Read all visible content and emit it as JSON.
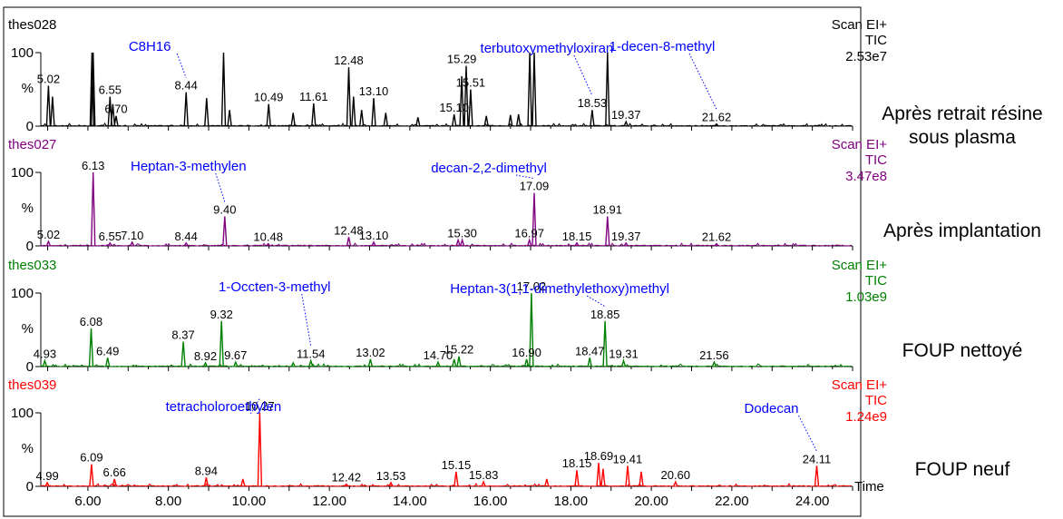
{
  "chart_data": {
    "type": "line",
    "xlim": [
      4.83,
      25.0
    ],
    "x_ticks": [
      "6.00",
      "8.00",
      "10.00",
      "12.00",
      "14.00",
      "16.00",
      "18.00",
      "20.00",
      "22.00",
      "24.00"
    ],
    "x_tick_values": [
      6,
      8,
      10,
      12,
      14,
      16,
      18,
      20,
      22,
      24
    ],
    "x_axis_label": "Time",
    "y_tick_top": "100",
    "y_tick_zero": "0",
    "y_unit": "%",
    "panels": [
      {
        "name": "thes028",
        "color": "#000000",
        "scan": "Scan EI+",
        "tic": "TIC",
        "intensity": "2.53e7",
        "side_label": [
          "Après retrait résine",
          "sous plasma"
        ],
        "peaks": [
          [
            5.02,
            55
          ],
          [
            5.12,
            40
          ],
          [
            6.1,
            100
          ],
          [
            6.13,
            100
          ],
          [
            6.55,
            40
          ],
          [
            6.62,
            30
          ],
          [
            6.7,
            14
          ],
          [
            8.44,
            46
          ],
          [
            8.95,
            38
          ],
          [
            9.37,
            100
          ],
          [
            9.52,
            22
          ],
          [
            10.49,
            30
          ],
          [
            11.1,
            18
          ],
          [
            11.61,
            31
          ],
          [
            12.48,
            80
          ],
          [
            12.6,
            40
          ],
          [
            12.8,
            22
          ],
          [
            13.1,
            38
          ],
          [
            13.4,
            18
          ],
          [
            14.2,
            12
          ],
          [
            15.1,
            16
          ],
          [
            15.29,
            68
          ],
          [
            15.4,
            82
          ],
          [
            15.51,
            50
          ],
          [
            15.9,
            14
          ],
          [
            16.5,
            15
          ],
          [
            16.7,
            16
          ],
          [
            16.98,
            100
          ],
          [
            17.09,
            100
          ],
          [
            18.53,
            22
          ],
          [
            18.91,
            100
          ],
          [
            19.37,
            6
          ],
          [
            21.62,
            3
          ]
        ],
        "labels": [
          {
            "t": "5.02",
            "x": 5.02,
            "y": 55
          },
          {
            "t": "6.55",
            "x": 6.55,
            "y": 40
          },
          {
            "t": "6.70",
            "x": 6.7,
            "y": 14
          },
          {
            "t": "8.44",
            "x": 8.44,
            "y": 46
          },
          {
            "t": "10.49",
            "x": 10.49,
            "y": 30
          },
          {
            "t": "11.61",
            "x": 11.61,
            "y": 31
          },
          {
            "t": "12.48",
            "x": 12.48,
            "y": 80
          },
          {
            "t": "13.10",
            "x": 13.1,
            "y": 38
          },
          {
            "t": "15.10",
            "x": 15.1,
            "y": 16
          },
          {
            "t": "15.29",
            "x": 15.29,
            "y": 82
          },
          {
            "t": "15.51",
            "x": 15.51,
            "y": 50
          },
          {
            "t": "18.53",
            "x": 18.53,
            "y": 22
          },
          {
            "t": "19.37",
            "x": 19.37,
            "y": 6
          },
          {
            "t": "21.62",
            "x": 21.62,
            "y": 3
          }
        ],
        "annotations": [
          {
            "t": "C8H16",
            "x": 8.44,
            "y": 46
          },
          {
            "t": "terbutoxymethyloxiran",
            "x": 18.53,
            "y": 22
          },
          {
            "t": "1-decen-8-methyl",
            "x": 21.62,
            "y": 3
          }
        ]
      },
      {
        "name": "thes027",
        "color": "#800080",
        "scan": "Scan EI+",
        "tic": "TIC",
        "intensity": "3.47e8",
        "side_label": [
          "Après implantation"
        ],
        "peaks": [
          [
            5.02,
            6
          ],
          [
            6.13,
            100
          ],
          [
            6.55,
            4
          ],
          [
            7.1,
            5
          ],
          [
            8.44,
            4
          ],
          [
            9.4,
            40
          ],
          [
            10.48,
            3
          ],
          [
            12.48,
            12
          ],
          [
            13.1,
            5
          ],
          [
            15.2,
            8
          ],
          [
            15.3,
            8
          ],
          [
            16.97,
            8
          ],
          [
            17.09,
            72
          ],
          [
            18.15,
            4
          ],
          [
            18.91,
            40
          ],
          [
            19.37,
            4
          ],
          [
            21.62,
            3
          ]
        ],
        "labels": [
          {
            "t": "6.13",
            "x": 6.13,
            "y": 100
          },
          {
            "t": "5.02",
            "x": 5.02,
            "y": 6
          },
          {
            "t": "6.55",
            "x": 6.55,
            "y": 4
          },
          {
            "t": "7.10",
            "x": 7.1,
            "y": 5
          },
          {
            "t": "8.44",
            "x": 8.44,
            "y": 4
          },
          {
            "t": "9.40",
            "x": 9.4,
            "y": 40
          },
          {
            "t": "10.48",
            "x": 10.48,
            "y": 3
          },
          {
            "t": "12.48",
            "x": 12.48,
            "y": 12
          },
          {
            "t": "13.10",
            "x": 13.1,
            "y": 5
          },
          {
            "t": "15.30",
            "x": 15.3,
            "y": 8
          },
          {
            "t": "16.97",
            "x": 16.97,
            "y": 8
          },
          {
            "t": "17.09",
            "x": 17.09,
            "y": 72
          },
          {
            "t": "18.15",
            "x": 18.15,
            "y": 4
          },
          {
            "t": "18.91",
            "x": 18.91,
            "y": 40
          },
          {
            "t": "19.37",
            "x": 19.37,
            "y": 4
          },
          {
            "t": "21.62",
            "x": 21.62,
            "y": 3
          }
        ],
        "annotations": [
          {
            "t": "Heptan-3-methylen",
            "x": 9.4,
            "y": 40
          },
          {
            "t": "decan-2,2-dimethyl",
            "x": 17.09,
            "y": 72
          }
        ]
      },
      {
        "name": "thes033",
        "color": "#008000",
        "scan": "Scan EI+",
        "tic": "TIC",
        "intensity": "1.03e9",
        "side_label": [
          "FOUP nettoyé"
        ],
        "peaks": [
          [
            4.93,
            8
          ],
          [
            6.08,
            52
          ],
          [
            6.49,
            12
          ],
          [
            8.37,
            34
          ],
          [
            8.92,
            5
          ],
          [
            9.32,
            62
          ],
          [
            9.67,
            6
          ],
          [
            11.1,
            5
          ],
          [
            11.54,
            8
          ],
          [
            13.02,
            10
          ],
          [
            14.7,
            6
          ],
          [
            15.1,
            10
          ],
          [
            15.22,
            14
          ],
          [
            16.9,
            10
          ],
          [
            17.02,
            100
          ],
          [
            18.47,
            12
          ],
          [
            18.85,
            62
          ],
          [
            19.31,
            8
          ],
          [
            21.56,
            6
          ]
        ],
        "labels": [
          {
            "t": "4.93",
            "x": 4.93,
            "y": 8
          },
          {
            "t": "6.08",
            "x": 6.08,
            "y": 52
          },
          {
            "t": "6.49",
            "x": 6.49,
            "y": 12
          },
          {
            "t": "8.37",
            "x": 8.37,
            "y": 34
          },
          {
            "t": "8.92",
            "x": 8.92,
            "y": 5
          },
          {
            "t": "9.32",
            "x": 9.32,
            "y": 62
          },
          {
            "t": "9.67",
            "x": 9.67,
            "y": 6
          },
          {
            "t": "11.54",
            "x": 11.54,
            "y": 8
          },
          {
            "t": "13.02",
            "x": 13.02,
            "y": 10
          },
          {
            "t": "14.70",
            "x": 14.7,
            "y": 6
          },
          {
            "t": "15.22",
            "x": 15.22,
            "y": 14
          },
          {
            "t": "16.90",
            "x": 16.9,
            "y": 10
          },
          {
            "t": "17.02",
            "x": 17.02,
            "y": 100
          },
          {
            "t": "18.47",
            "x": 18.47,
            "y": 12
          },
          {
            "t": "18.85",
            "x": 18.85,
            "y": 62
          },
          {
            "t": "19.31",
            "x": 19.31,
            "y": 8
          },
          {
            "t": "21.56",
            "x": 21.56,
            "y": 6
          }
        ],
        "annotations": [
          {
            "t": "1-Occten-3-methyl",
            "x": 11.54,
            "y": 8
          },
          {
            "t": "Heptan-3(1,1-dimethylethoxy)methyl",
            "x": 18.85,
            "y": 62
          }
        ]
      },
      {
        "name": "thes039",
        "color": "#ff0000",
        "scan": "Scan EI+",
        "tic": "TIC",
        "intensity": "1.24e9",
        "side_label": [
          "FOUP neuf"
        ],
        "peaks": [
          [
            4.99,
            5
          ],
          [
            6.09,
            30
          ],
          [
            6.66,
            10
          ],
          [
            8.94,
            12
          ],
          [
            9.85,
            10
          ],
          [
            10.27,
            100
          ],
          [
            12.42,
            3
          ],
          [
            13.53,
            5
          ],
          [
            15.15,
            20
          ],
          [
            15.83,
            6
          ],
          [
            17.4,
            10
          ],
          [
            18.15,
            22
          ],
          [
            18.69,
            32
          ],
          [
            18.8,
            24
          ],
          [
            19.41,
            28
          ],
          [
            19.75,
            20
          ],
          [
            20.6,
            6
          ],
          [
            24.11,
            28
          ]
        ],
        "labels": [
          {
            "t": "4.99",
            "x": 4.99,
            "y": 5
          },
          {
            "t": "6.09",
            "x": 6.09,
            "y": 30
          },
          {
            "t": "6.66",
            "x": 6.66,
            "y": 10
          },
          {
            "t": "8.94",
            "x": 8.94,
            "y": 12
          },
          {
            "t": "10.27",
            "x": 10.27,
            "y": 100
          },
          {
            "t": "12.42",
            "x": 12.42,
            "y": 3
          },
          {
            "t": "13.53",
            "x": 13.53,
            "y": 5
          },
          {
            "t": "15.15",
            "x": 15.15,
            "y": 20
          },
          {
            "t": "15.83",
            "x": 15.83,
            "y": 6
          },
          {
            "t": "18.15",
            "x": 18.15,
            "y": 22
          },
          {
            "t": "18.69",
            "x": 18.69,
            "y": 32
          },
          {
            "t": "19.41",
            "x": 19.41,
            "y": 28
          },
          {
            "t": "20.60",
            "x": 20.6,
            "y": 6
          },
          {
            "t": "24.11",
            "x": 24.11,
            "y": 28
          }
        ],
        "annotations": [
          {
            "t": "tetracholoroethylen",
            "x": 10.27,
            "y": 100
          },
          {
            "t": "Dodecan",
            "x": 24.11,
            "y": 28
          }
        ]
      }
    ]
  }
}
